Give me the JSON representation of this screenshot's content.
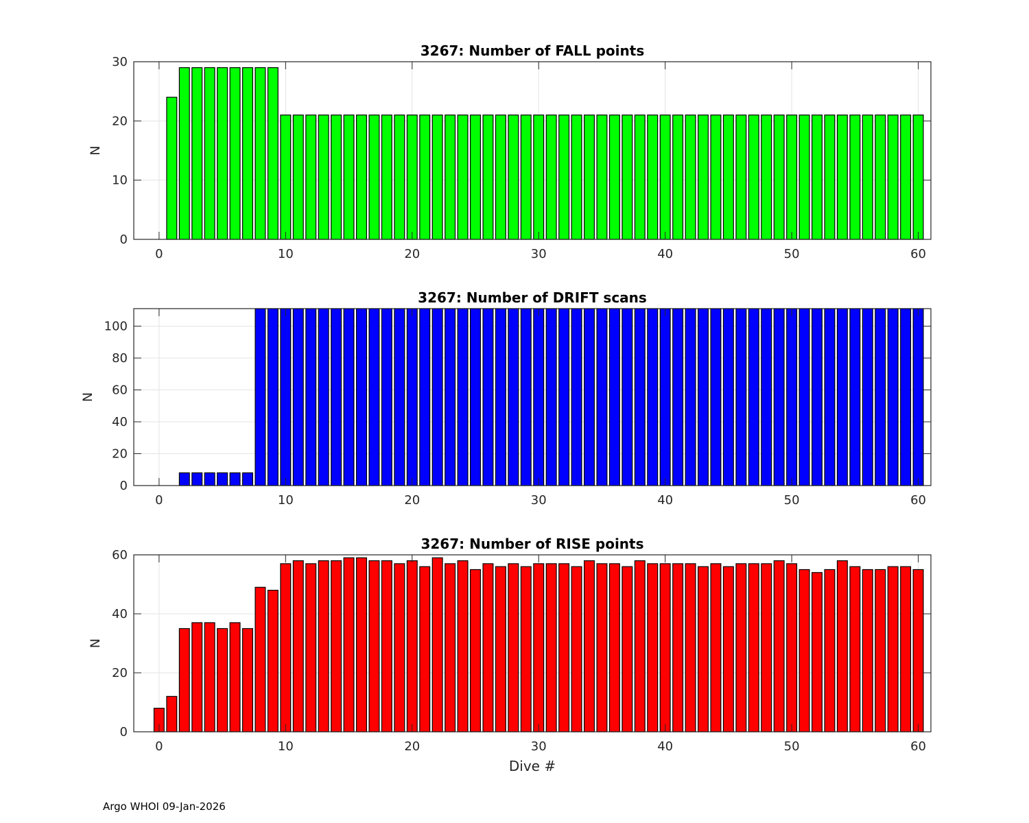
{
  "footer": "Argo WHOI 09-Jan-2026",
  "chart_data": [
    {
      "type": "bar",
      "title": "3267: Number of FALL points",
      "xlabel": "",
      "ylabel": "N",
      "xlim": [
        -2,
        61
      ],
      "ylim": [
        0,
        30
      ],
      "xticks": [
        0,
        10,
        20,
        30,
        40,
        50,
        60
      ],
      "yticks": [
        0,
        10,
        20,
        30
      ],
      "grid": true,
      "color": "#00ff00",
      "x": [
        1,
        2,
        3,
        4,
        5,
        6,
        7,
        8,
        9,
        10,
        11,
        12,
        13,
        14,
        15,
        16,
        17,
        18,
        19,
        20,
        21,
        22,
        23,
        24,
        25,
        26,
        27,
        28,
        29,
        30,
        31,
        32,
        33,
        34,
        35,
        36,
        37,
        38,
        39,
        40,
        41,
        42,
        43,
        44,
        45,
        46,
        47,
        48,
        49,
        50,
        51,
        52,
        53,
        54,
        55,
        56,
        57,
        58,
        59,
        60
      ],
      "values": [
        24,
        29,
        29,
        29,
        29,
        29,
        29,
        29,
        29,
        21,
        21,
        21,
        21,
        21,
        21,
        21,
        21,
        21,
        21,
        21,
        21,
        21,
        21,
        21,
        21,
        21,
        21,
        21,
        21,
        21,
        21,
        21,
        21,
        21,
        21,
        21,
        21,
        21,
        21,
        21,
        21,
        21,
        21,
        21,
        21,
        21,
        21,
        21,
        21,
        21,
        21,
        21,
        21,
        21,
        21,
        21,
        21,
        21,
        21,
        21
      ]
    },
    {
      "type": "bar",
      "title": "3267: Number of DRIFT scans",
      "xlabel": "",
      "ylabel": "N",
      "xlim": [
        -2,
        61
      ],
      "ylim": [
        0,
        111
      ],
      "xticks": [
        0,
        10,
        20,
        30,
        40,
        50,
        60
      ],
      "yticks": [
        0,
        20,
        40,
        60,
        80,
        100
      ],
      "grid": true,
      "color": "#0000ff",
      "x": [
        -1,
        0,
        1,
        2,
        3,
        4,
        5,
        6,
        7,
        8,
        9,
        10,
        11,
        12,
        13,
        14,
        15,
        16,
        17,
        18,
        19,
        20,
        21,
        22,
        23,
        24,
        25,
        26,
        27,
        28,
        29,
        30,
        31,
        32,
        33,
        34,
        35,
        36,
        37,
        38,
        39,
        40,
        41,
        42,
        43,
        44,
        45,
        46,
        47,
        48,
        49,
        50,
        51,
        52,
        53,
        54,
        55,
        56,
        57,
        58,
        59,
        60
      ],
      "values": [
        0,
        0,
        0,
        8,
        8,
        8,
        8,
        8,
        8,
        111,
        111,
        111,
        111,
        111,
        111,
        111,
        111,
        111,
        111,
        111,
        111,
        111,
        111,
        111,
        111,
        111,
        111,
        111,
        111,
        111,
        111,
        111,
        111,
        111,
        111,
        111,
        111,
        111,
        111,
        111,
        111,
        111,
        111,
        111,
        111,
        111,
        111,
        111,
        111,
        111,
        111,
        111,
        111,
        111,
        111,
        111,
        111,
        111,
        111,
        111,
        111,
        111
      ]
    },
    {
      "type": "bar",
      "title": "3267: Number of RISE points",
      "xlabel": "Dive #",
      "ylabel": "N",
      "xlim": [
        -2,
        61
      ],
      "ylim": [
        0,
        60
      ],
      "xticks": [
        0,
        10,
        20,
        30,
        40,
        50,
        60
      ],
      "yticks": [
        0,
        20,
        40,
        60
      ],
      "grid": true,
      "color": "#ff0000",
      "x": [
        0,
        1,
        2,
        3,
        4,
        5,
        6,
        7,
        8,
        9,
        10,
        11,
        12,
        13,
        14,
        15,
        16,
        17,
        18,
        19,
        20,
        21,
        22,
        23,
        24,
        25,
        26,
        27,
        28,
        29,
        30,
        31,
        32,
        33,
        34,
        35,
        36,
        37,
        38,
        39,
        40,
        41,
        42,
        43,
        44,
        45,
        46,
        47,
        48,
        49,
        50,
        51,
        52,
        53,
        54,
        55,
        56,
        57,
        58,
        59,
        60
      ],
      "values": [
        8,
        12,
        35,
        37,
        37,
        35,
        37,
        35,
        49,
        48,
        57,
        58,
        57,
        58,
        58,
        59,
        59,
        58,
        58,
        57,
        58,
        56,
        59,
        57,
        58,
        55,
        57,
        56,
        57,
        56,
        57,
        57,
        57,
        56,
        58,
        57,
        57,
        56,
        58,
        57,
        57,
        57,
        57,
        56,
        57,
        56,
        57,
        57,
        57,
        58,
        57,
        55,
        54,
        55,
        58,
        56,
        55,
        55,
        56,
        56,
        55
      ]
    }
  ]
}
